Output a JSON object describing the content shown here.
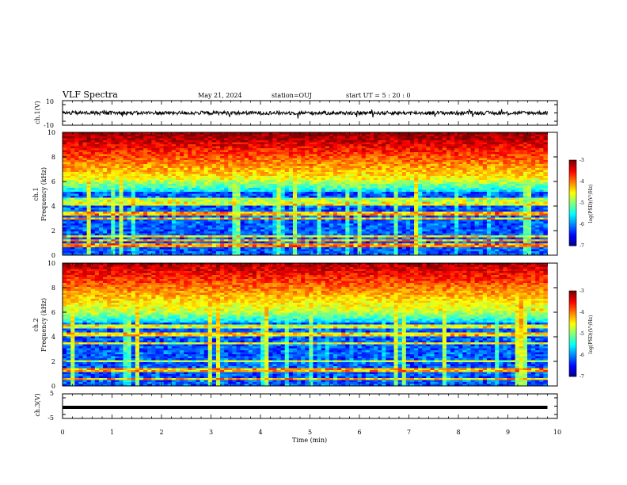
{
  "header": {
    "title": "VLF Spectra",
    "date": "May 21, 2024",
    "station": "station=OUJ",
    "start": "start  UT  =   5  : 20 : 0"
  },
  "chart_data": [
    {
      "type": "line",
      "name": "ch1-waveform",
      "ylabel": "ch.1(V)",
      "ylim": [
        -10,
        10
      ],
      "yticks": [
        "10",
        "-10"
      ],
      "xlim": [
        0,
        10
      ],
      "baseline": 0,
      "noise_amplitude": 1.5
    },
    {
      "type": "heatmap",
      "name": "ch1-spectrogram",
      "ylabel_lines": [
        "ch.1",
        "Frequency  (kHz)"
      ],
      "ylim": [
        0,
        10
      ],
      "yticks": [
        "0",
        "2",
        "4",
        "6",
        "8",
        "10"
      ],
      "xlim": [
        0,
        10
      ],
      "data_end_min": 9.8,
      "colorbar": {
        "label": "log(PSD)(V²/Hz)",
        "range": [
          -7,
          -3
        ],
        "ticks": [
          "-3",
          "-4",
          "-5",
          "-6",
          "-7"
        ]
      }
    },
    {
      "type": "heatmap",
      "name": "ch2-spectrogram",
      "ylabel_lines": [
        "ch.2",
        "Frequency  (kHz)"
      ],
      "ylim": [
        0,
        10
      ],
      "yticks": [
        "0",
        "2",
        "4",
        "6",
        "8",
        "10"
      ],
      "xlim": [
        0,
        10
      ],
      "data_end_min": 9.8,
      "colorbar": {
        "label": "log(PSD)(V²/Hz)",
        "range": [
          -7,
          -3
        ],
        "ticks": [
          "-3",
          "-4",
          "-5",
          "-6",
          "-7"
        ]
      }
    },
    {
      "type": "line",
      "name": "ch3-waveform",
      "ylabel": "ch.3(V)",
      "ylim": [
        -5,
        5
      ],
      "yticks": [
        "5",
        "-5"
      ],
      "xlim": [
        0,
        10
      ],
      "baseline": -0.5
    }
  ],
  "xaxis": {
    "label": "Time  (min)",
    "ticks": [
      "0",
      "1",
      "2",
      "3",
      "4",
      "5",
      "6",
      "7",
      "8",
      "9",
      "10"
    ]
  },
  "colors": {
    "colormap": [
      "#00007f",
      "#0000ff",
      "#007fff",
      "#00ffff",
      "#7fff7f",
      "#ffff00",
      "#ff7f00",
      "#ff0000",
      "#7f0000"
    ]
  }
}
